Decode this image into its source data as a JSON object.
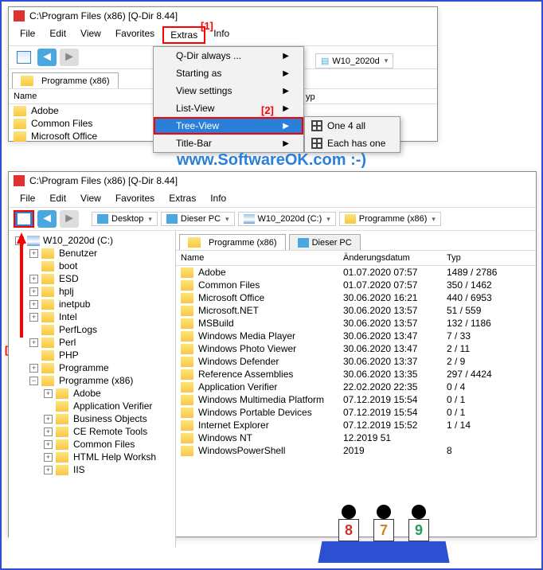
{
  "annotations": {
    "a1": "[1]",
    "a2": "[2]",
    "a3": "[3]"
  },
  "watermark_center": "www.SoftwareOK.com :-)",
  "watermark_side": "www.SoftwareOK.com :-)",
  "win1": {
    "title": "C:\\Program Files (x86)  [Q-Dir 8.44]",
    "menu": {
      "file": "File",
      "edit": "Edit",
      "view": "View",
      "favorites": "Favorites",
      "extras": "Extras",
      "info": "Info"
    },
    "breadcrumb": {
      "drive": "W10_2020d",
      "folder": "Programme (x86)"
    },
    "header": {
      "name": "Name",
      "type": "yp"
    },
    "items": [
      "Adobe",
      "Common Files",
      "Microsoft Office"
    ]
  },
  "dropdown": {
    "items": [
      {
        "label": "Q-Dir always ..."
      },
      {
        "label": "Starting as"
      },
      {
        "label": "View settings"
      },
      {
        "label": "List-View"
      },
      {
        "label": "Tree-View",
        "selected": true
      },
      {
        "label": "Title-Bar"
      }
    ]
  },
  "submenu": {
    "one4all": "One 4 all",
    "eachone": "Each has one"
  },
  "win2": {
    "title": "C:\\Program Files (x86)  [Q-Dir 8.44]",
    "menu": {
      "file": "File",
      "edit": "Edit",
      "view": "View",
      "favorites": "Favorites",
      "extras": "Extras",
      "info": "Info"
    },
    "bc": {
      "desktop": "Desktop",
      "pc": "Dieser PC",
      "drive": "W10_2020d (C:)",
      "folder": "Programme (x86)"
    },
    "tabs": {
      "t1": "Programme (x86)",
      "t2": "Dieser PC"
    },
    "cols": {
      "name": "Name",
      "date": "Änderungsdatum",
      "type": "Typ"
    },
    "tree": [
      {
        "label": "W10_2020d (C:)",
        "depth": 0,
        "exp": "−",
        "ico": "drive"
      },
      {
        "label": "Benutzer",
        "depth": 1,
        "exp": "+"
      },
      {
        "label": "boot",
        "depth": 1,
        "exp": ""
      },
      {
        "label": "ESD",
        "depth": 1,
        "exp": "+"
      },
      {
        "label": "hplj",
        "depth": 1,
        "exp": "+"
      },
      {
        "label": "inetpub",
        "depth": 1,
        "exp": "+"
      },
      {
        "label": "Intel",
        "depth": 1,
        "exp": "+"
      },
      {
        "label": "PerfLogs",
        "depth": 1,
        "exp": ""
      },
      {
        "label": "Perl",
        "depth": 1,
        "exp": "+"
      },
      {
        "label": "PHP",
        "depth": 1,
        "exp": ""
      },
      {
        "label": "Programme",
        "depth": 1,
        "exp": "+"
      },
      {
        "label": "Programme (x86)",
        "depth": 1,
        "exp": "−"
      },
      {
        "label": "Adobe",
        "depth": 2,
        "exp": "+"
      },
      {
        "label": "Application Verifier",
        "depth": 2,
        "exp": ""
      },
      {
        "label": "Business Objects",
        "depth": 2,
        "exp": "+"
      },
      {
        "label": "CE Remote Tools",
        "depth": 2,
        "exp": "+"
      },
      {
        "label": "Common Files",
        "depth": 2,
        "exp": "+"
      },
      {
        "label": "HTML Help Worksh",
        "depth": 2,
        "exp": "+"
      },
      {
        "label": "IIS",
        "depth": 2,
        "exp": "+"
      }
    ],
    "files": [
      {
        "n": "Adobe",
        "d": "01.07.2020 07:57",
        "t": "1489 / 2786"
      },
      {
        "n": "Common Files",
        "d": "01.07.2020 07:57",
        "t": "350 / 1462"
      },
      {
        "n": "Microsoft Office",
        "d": "30.06.2020 16:21",
        "t": "440 / 6953"
      },
      {
        "n": "Microsoft.NET",
        "d": "30.06.2020 13:57",
        "t": "51 / 559"
      },
      {
        "n": "MSBuild",
        "d": "30.06.2020 13:57",
        "t": "132 / 1186"
      },
      {
        "n": "Windows Media Player",
        "d": "30.06.2020 13:47",
        "t": "7 / 33"
      },
      {
        "n": "Windows Photo Viewer",
        "d": "30.06.2020 13:47",
        "t": "2 / 11"
      },
      {
        "n": "Windows Defender",
        "d": "30.06.2020 13:37",
        "t": "2 / 9"
      },
      {
        "n": "Reference Assemblies",
        "d": "30.06.2020 13:35",
        "t": "297 / 4424"
      },
      {
        "n": "Application Verifier",
        "d": "22.02.2020 22:35",
        "t": "0 / 4"
      },
      {
        "n": "Windows Multimedia Platform",
        "d": "07.12.2019 15:54",
        "t": "0 / 1"
      },
      {
        "n": "Windows Portable Devices",
        "d": "07.12.2019 15:54",
        "t": "0 / 1"
      },
      {
        "n": "Internet Explorer",
        "d": "07.12.2019 15:52",
        "t": "1 / 14"
      },
      {
        "n": "Windows NT",
        "d": "12.2019   51",
        "t": ""
      },
      {
        "n": "WindowsPowerShell",
        "d": "2019",
        "t": "8"
      }
    ]
  },
  "judges": {
    "s1": "8",
    "s2": "7",
    "s3": "9",
    "c1": "#d13030",
    "c2": "#d1852a",
    "c3": "#2a9a5a"
  }
}
